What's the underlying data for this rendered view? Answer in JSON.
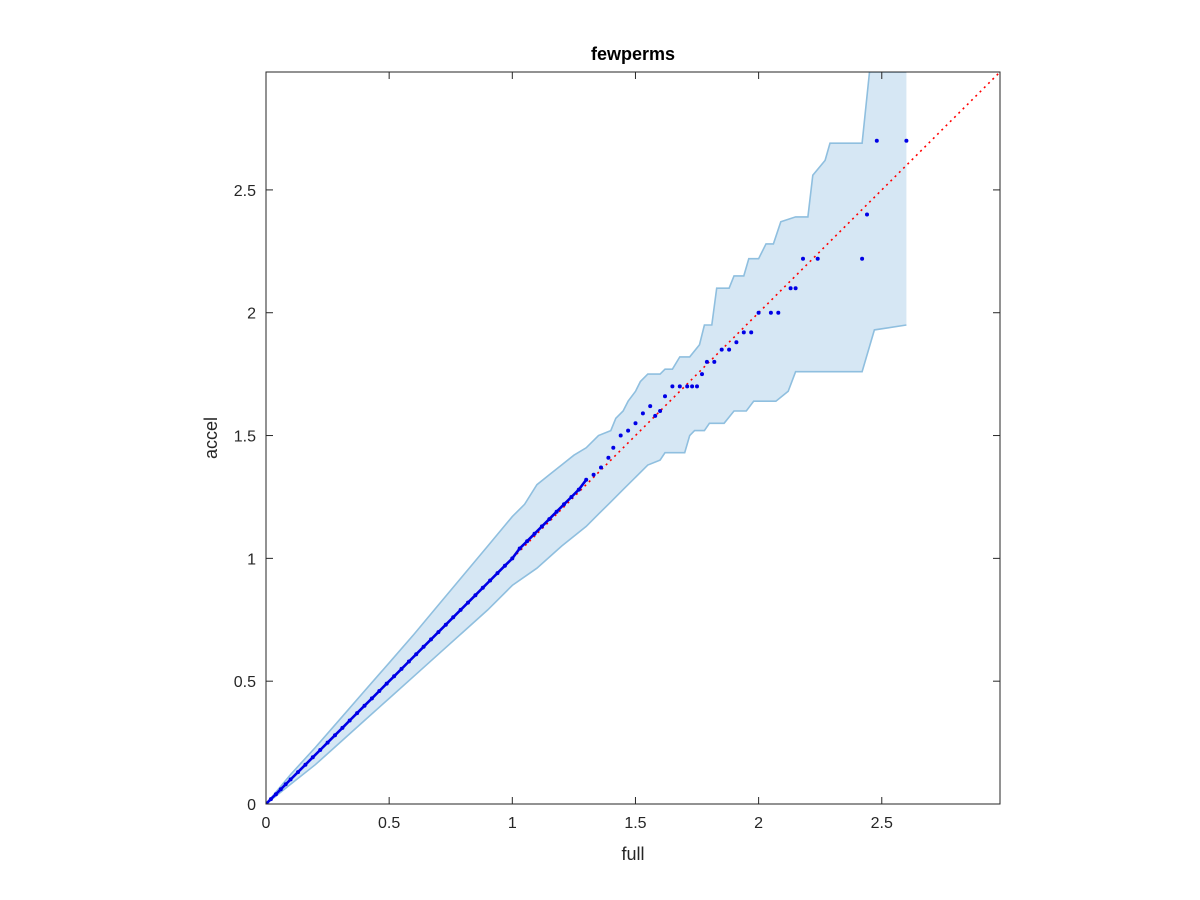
{
  "chart_data": {
    "type": "scatter",
    "title": "fewperms",
    "xlabel": "full",
    "ylabel": "accel",
    "xlim": [
      0,
      2.98
    ],
    "ylim": [
      0,
      2.98
    ],
    "xticks": [
      0,
      0.5,
      1,
      1.5,
      2,
      2.5
    ],
    "yticks": [
      0,
      0.5,
      1,
      1.5,
      2,
      2.5
    ],
    "xtick_labels": [
      "0",
      "0.5",
      "1",
      "1.5",
      "2",
      "2.5"
    ],
    "ytick_labels": [
      "0",
      "0.5",
      "1",
      "1.5",
      "2",
      "2.5"
    ],
    "grid": false,
    "box": true,
    "colors": {
      "points": "#0000e6",
      "reference_line": "#ff0000",
      "band_fill": "#d6e7f4",
      "band_edge": "#8fbfdf",
      "axes": "#262626"
    },
    "reference_line": {
      "x": [
        0,
        2.98
      ],
      "y": [
        0,
        2.98
      ],
      "style": "dotted"
    },
    "confidence_band": {
      "upper": [
        [
          0,
          0
        ],
        [
          0.1,
          0.12
        ],
        [
          0.2,
          0.23
        ],
        [
          0.3,
          0.345
        ],
        [
          0.4,
          0.46
        ],
        [
          0.5,
          0.575
        ],
        [
          0.6,
          0.69
        ],
        [
          0.7,
          0.81
        ],
        [
          0.8,
          0.93
        ],
        [
          0.9,
          1.05
        ],
        [
          1.0,
          1.17
        ],
        [
          1.05,
          1.22
        ],
        [
          1.1,
          1.3
        ],
        [
          1.15,
          1.34
        ],
        [
          1.2,
          1.38
        ],
        [
          1.25,
          1.42
        ],
        [
          1.3,
          1.45
        ],
        [
          1.35,
          1.5
        ],
        [
          1.4,
          1.52
        ],
        [
          1.42,
          1.57
        ],
        [
          1.45,
          1.6
        ],
        [
          1.47,
          1.64
        ],
        [
          1.5,
          1.68
        ],
        [
          1.52,
          1.72
        ],
        [
          1.55,
          1.75
        ],
        [
          1.6,
          1.75
        ],
        [
          1.62,
          1.77
        ],
        [
          1.65,
          1.77
        ],
        [
          1.68,
          1.82
        ],
        [
          1.72,
          1.82
        ],
        [
          1.76,
          1.87
        ],
        [
          1.78,
          1.95
        ],
        [
          1.81,
          1.95
        ],
        [
          1.83,
          2.1
        ],
        [
          1.88,
          2.1
        ],
        [
          1.9,
          2.15
        ],
        [
          1.94,
          2.15
        ],
        [
          1.96,
          2.22
        ],
        [
          2.0,
          2.22
        ],
        [
          2.03,
          2.28
        ],
        [
          2.06,
          2.28
        ],
        [
          2.09,
          2.37
        ],
        [
          2.15,
          2.39
        ],
        [
          2.2,
          2.39
        ],
        [
          2.22,
          2.56
        ],
        [
          2.27,
          2.62
        ],
        [
          2.29,
          2.69
        ],
        [
          2.42,
          2.69
        ],
        [
          2.45,
          2.98
        ],
        [
          2.6,
          2.98
        ]
      ],
      "lower": [
        [
          0,
          0
        ],
        [
          0.1,
          0.08
        ],
        [
          0.2,
          0.16
        ],
        [
          0.3,
          0.25
        ],
        [
          0.4,
          0.34
        ],
        [
          0.5,
          0.43
        ],
        [
          0.6,
          0.52
        ],
        [
          0.7,
          0.61
        ],
        [
          0.8,
          0.7
        ],
        [
          0.9,
          0.79
        ],
        [
          1.0,
          0.89
        ],
        [
          1.1,
          0.96
        ],
        [
          1.2,
          1.05
        ],
        [
          1.3,
          1.13
        ],
        [
          1.35,
          1.18
        ],
        [
          1.4,
          1.23
        ],
        [
          1.45,
          1.28
        ],
        [
          1.5,
          1.33
        ],
        [
          1.55,
          1.38
        ],
        [
          1.6,
          1.4
        ],
        [
          1.62,
          1.43
        ],
        [
          1.7,
          1.43
        ],
        [
          1.72,
          1.5
        ],
        [
          1.74,
          1.52
        ],
        [
          1.78,
          1.52
        ],
        [
          1.8,
          1.55
        ],
        [
          1.86,
          1.55
        ],
        [
          1.9,
          1.6
        ],
        [
          1.95,
          1.6
        ],
        [
          1.98,
          1.64
        ],
        [
          2.07,
          1.64
        ],
        [
          2.12,
          1.68
        ],
        [
          2.15,
          1.76
        ],
        [
          2.42,
          1.76
        ],
        [
          2.47,
          1.93
        ],
        [
          2.6,
          1.95
        ]
      ]
    },
    "points": {
      "x": [
        0.0,
        0.02,
        0.04,
        0.06,
        0.08,
        0.1,
        0.13,
        0.16,
        0.19,
        0.22,
        0.25,
        0.28,
        0.31,
        0.34,
        0.37,
        0.4,
        0.43,
        0.46,
        0.49,
        0.52,
        0.55,
        0.58,
        0.61,
        0.64,
        0.67,
        0.7,
        0.73,
        0.76,
        0.79,
        0.82,
        0.85,
        0.88,
        0.91,
        0.94,
        0.97,
        1.0,
        1.03,
        1.06,
        1.09,
        1.12,
        1.15,
        1.18,
        1.21,
        1.24,
        1.27,
        1.3,
        1.33,
        1.36,
        1.39,
        1.41,
        1.44,
        1.47,
        1.5,
        1.53,
        1.56,
        1.58,
        1.6,
        1.62,
        1.65,
        1.68,
        1.71,
        1.73,
        1.75,
        1.77,
        1.79,
        1.82,
        1.85,
        1.88,
        1.91,
        1.94,
        1.97,
        2.0,
        2.05,
        2.08,
        2.13,
        2.15,
        2.18,
        2.24,
        2.42,
        2.44,
        2.48,
        2.6
      ],
      "y": [
        0.0,
        0.02,
        0.04,
        0.06,
        0.08,
        0.1,
        0.13,
        0.16,
        0.19,
        0.22,
        0.25,
        0.28,
        0.31,
        0.34,
        0.37,
        0.4,
        0.43,
        0.46,
        0.49,
        0.52,
        0.55,
        0.58,
        0.61,
        0.64,
        0.67,
        0.7,
        0.73,
        0.76,
        0.79,
        0.82,
        0.85,
        0.88,
        0.91,
        0.94,
        0.97,
        1.0,
        1.04,
        1.07,
        1.1,
        1.13,
        1.16,
        1.19,
        1.22,
        1.25,
        1.28,
        1.32,
        1.34,
        1.37,
        1.41,
        1.45,
        1.5,
        1.52,
        1.55,
        1.59,
        1.62,
        1.58,
        1.6,
        1.66,
        1.7,
        1.7,
        1.7,
        1.7,
        1.7,
        1.75,
        1.8,
        1.8,
        1.85,
        1.85,
        1.88,
        1.92,
        1.92,
        2.0,
        2.0,
        2.0,
        2.1,
        2.1,
        2.22,
        2.22,
        2.22,
        2.4,
        2.7,
        2.7
      ]
    }
  }
}
